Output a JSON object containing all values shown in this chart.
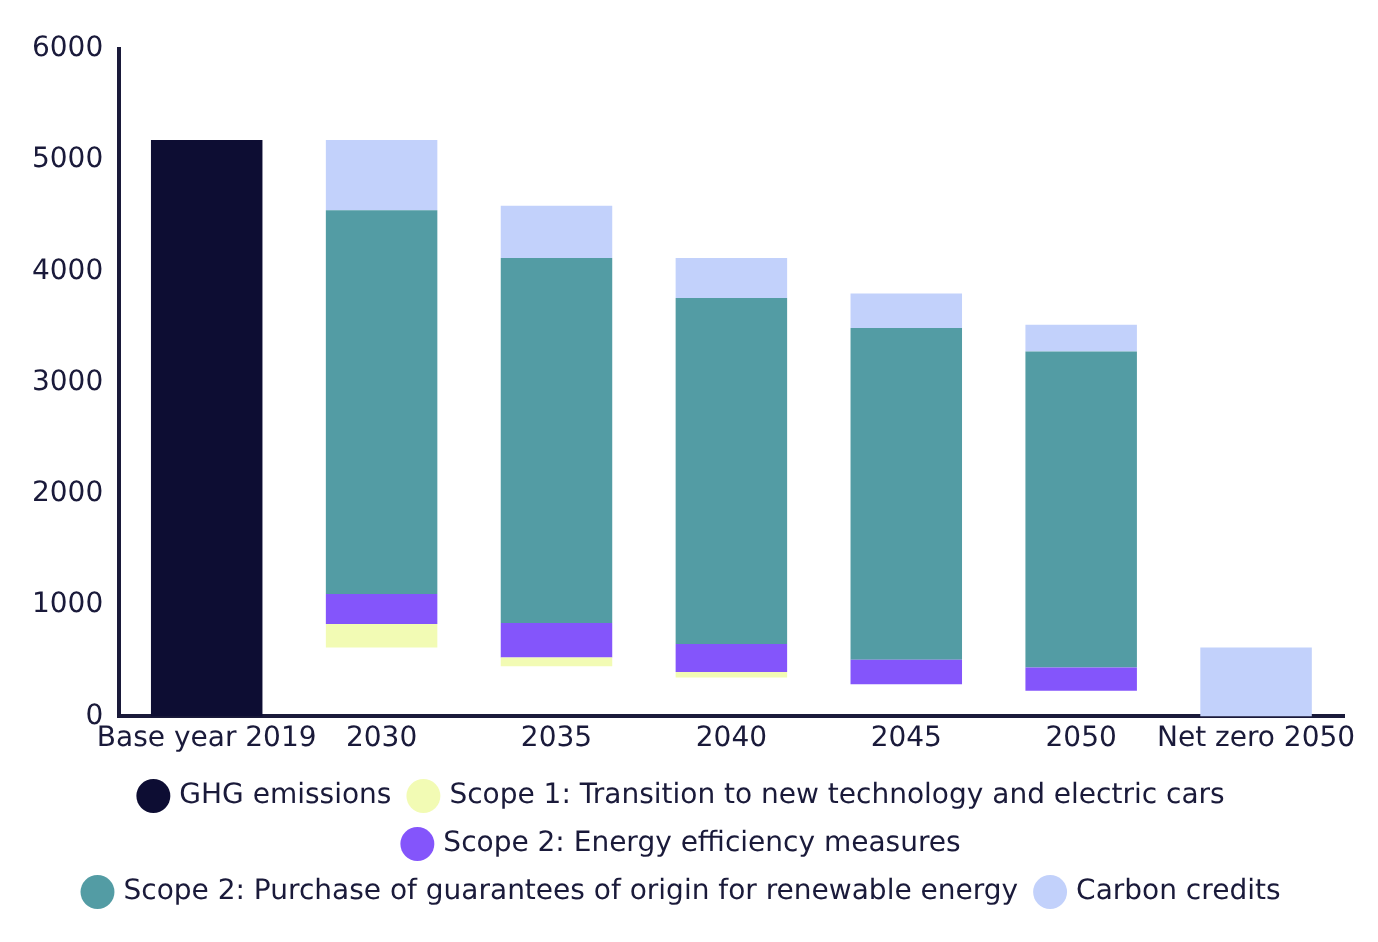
{
  "chart_data": {
    "type": "bar",
    "categories": [
      "Base year 2019",
      "2030",
      "2035",
      "2040",
      "2045",
      "2050",
      "Net zero 2050"
    ],
    "ylim": [
      0,
      6000
    ],
    "yticks": [
      0,
      1000,
      2000,
      3000,
      4000,
      5000,
      6000
    ],
    "grid": false,
    "legend": "bottom",
    "series": [
      {
        "name": "GHG emissions",
        "color": "#0d0d33",
        "values": [
          5180,
          null,
          null,
          null,
          null,
          null,
          null
        ],
        "base": [
          0,
          null,
          null,
          null,
          null,
          null,
          null
        ]
      },
      {
        "name": "Scope 1: Transition to new technology and electric cars",
        "color": "#f2fbb4",
        "values": [
          null,
          210,
          80,
          50,
          null,
          null,
          null
        ],
        "base": [
          null,
          620,
          450,
          350,
          null,
          null,
          null
        ]
      },
      {
        "name": "Scope 2: Energy efficiency measures",
        "color": "#8455fb",
        "values": [
          null,
          270,
          310,
          250,
          220,
          210,
          null
        ],
        "base": [
          null,
          830,
          530,
          400,
          290,
          230,
          null
        ]
      },
      {
        "name": "Scope 2: Purchase of guarantees of origin for renewable energy",
        "color": "#539ca4",
        "values": [
          null,
          3450,
          3280,
          3110,
          2980,
          2840,
          null
        ],
        "base": [
          null,
          1100,
          840,
          650,
          510,
          440,
          null
        ]
      },
      {
        "name": "Carbon credits",
        "color": "#c2d1fb",
        "values": [
          null,
          630,
          470,
          360,
          310,
          240,
          620
        ],
        "base": [
          null,
          4550,
          4120,
          3760,
          3490,
          3280,
          0
        ]
      }
    ]
  }
}
